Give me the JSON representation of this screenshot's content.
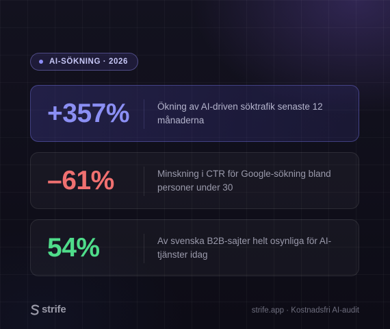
{
  "badge": {
    "label": "AI-SÖKNING · 2026"
  },
  "stats": [
    {
      "value": "+357%",
      "description": "Ökning av AI-driven söktrafik senaste 12 månaderna",
      "color": "#8b8ff4"
    },
    {
      "value": "–61%",
      "description": "Minskning i CTR för Google-sökning bland personer under 30",
      "color": "#f07070"
    },
    {
      "value": "54%",
      "description": "Av svenska B2B-sajter helt osynliga för AI-tjänster idag",
      "color": "#4fdc8a"
    }
  ],
  "footer": {
    "logo_text": "strife",
    "logo_icon": "strife-logo-icon",
    "note": "strife.app · Kostnadsfri AI-audit"
  },
  "colors": {
    "background": "#0e0d18",
    "accent": "#8c8cf5"
  }
}
